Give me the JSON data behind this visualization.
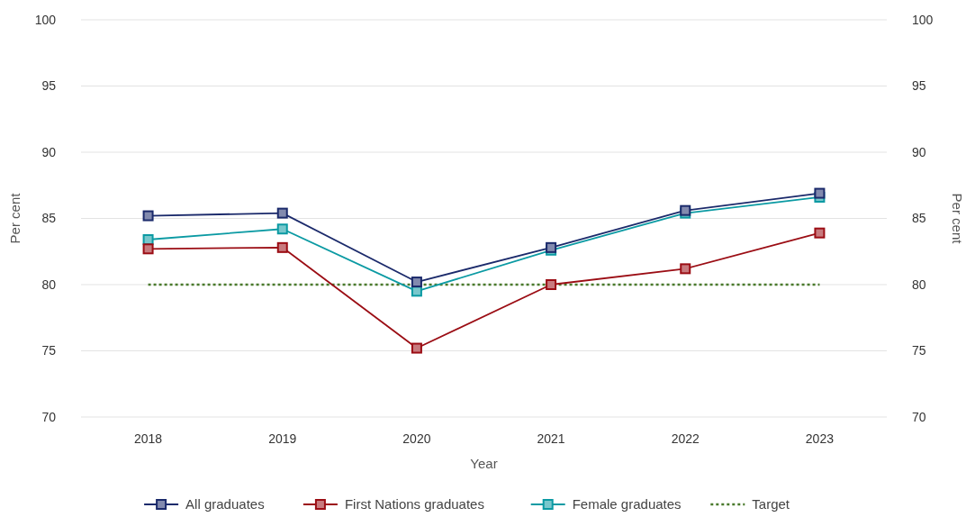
{
  "chart_data": {
    "type": "line",
    "xlabel": "Year",
    "ylabel": "Per cent",
    "y2label": "Per cent",
    "categories": [
      "2018",
      "2019",
      "2020",
      "2021",
      "2022",
      "2023"
    ],
    "series": [
      {
        "name": "All graduates",
        "color": "#1b2a6b",
        "values": [
          85.2,
          85.4,
          80.2,
          82.8,
          85.6,
          86.9
        ],
        "marker": "square"
      },
      {
        "name": "First Nations graduates",
        "color": "#9b0d14",
        "values": [
          82.7,
          82.8,
          75.2,
          80.0,
          81.2,
          83.9
        ],
        "marker": "square"
      },
      {
        "name": "Female graduates",
        "color": "#0b9aa3",
        "values": [
          83.4,
          84.2,
          79.5,
          82.6,
          85.4,
          86.6
        ],
        "marker": "square"
      },
      {
        "name": "Target",
        "color": "#4a7a2c",
        "values": [
          80,
          80,
          80,
          80,
          80,
          80
        ],
        "marker": "none",
        "line_style": "dotted"
      }
    ],
    "ylim": [
      70,
      100
    ],
    "yticks": [
      70,
      75,
      80,
      85,
      90,
      95,
      100
    ],
    "y2lim": [
      70,
      100
    ],
    "y2ticks": [
      70,
      75,
      80,
      85,
      90,
      95,
      100
    ],
    "grid": "y",
    "legend": "bottom"
  }
}
